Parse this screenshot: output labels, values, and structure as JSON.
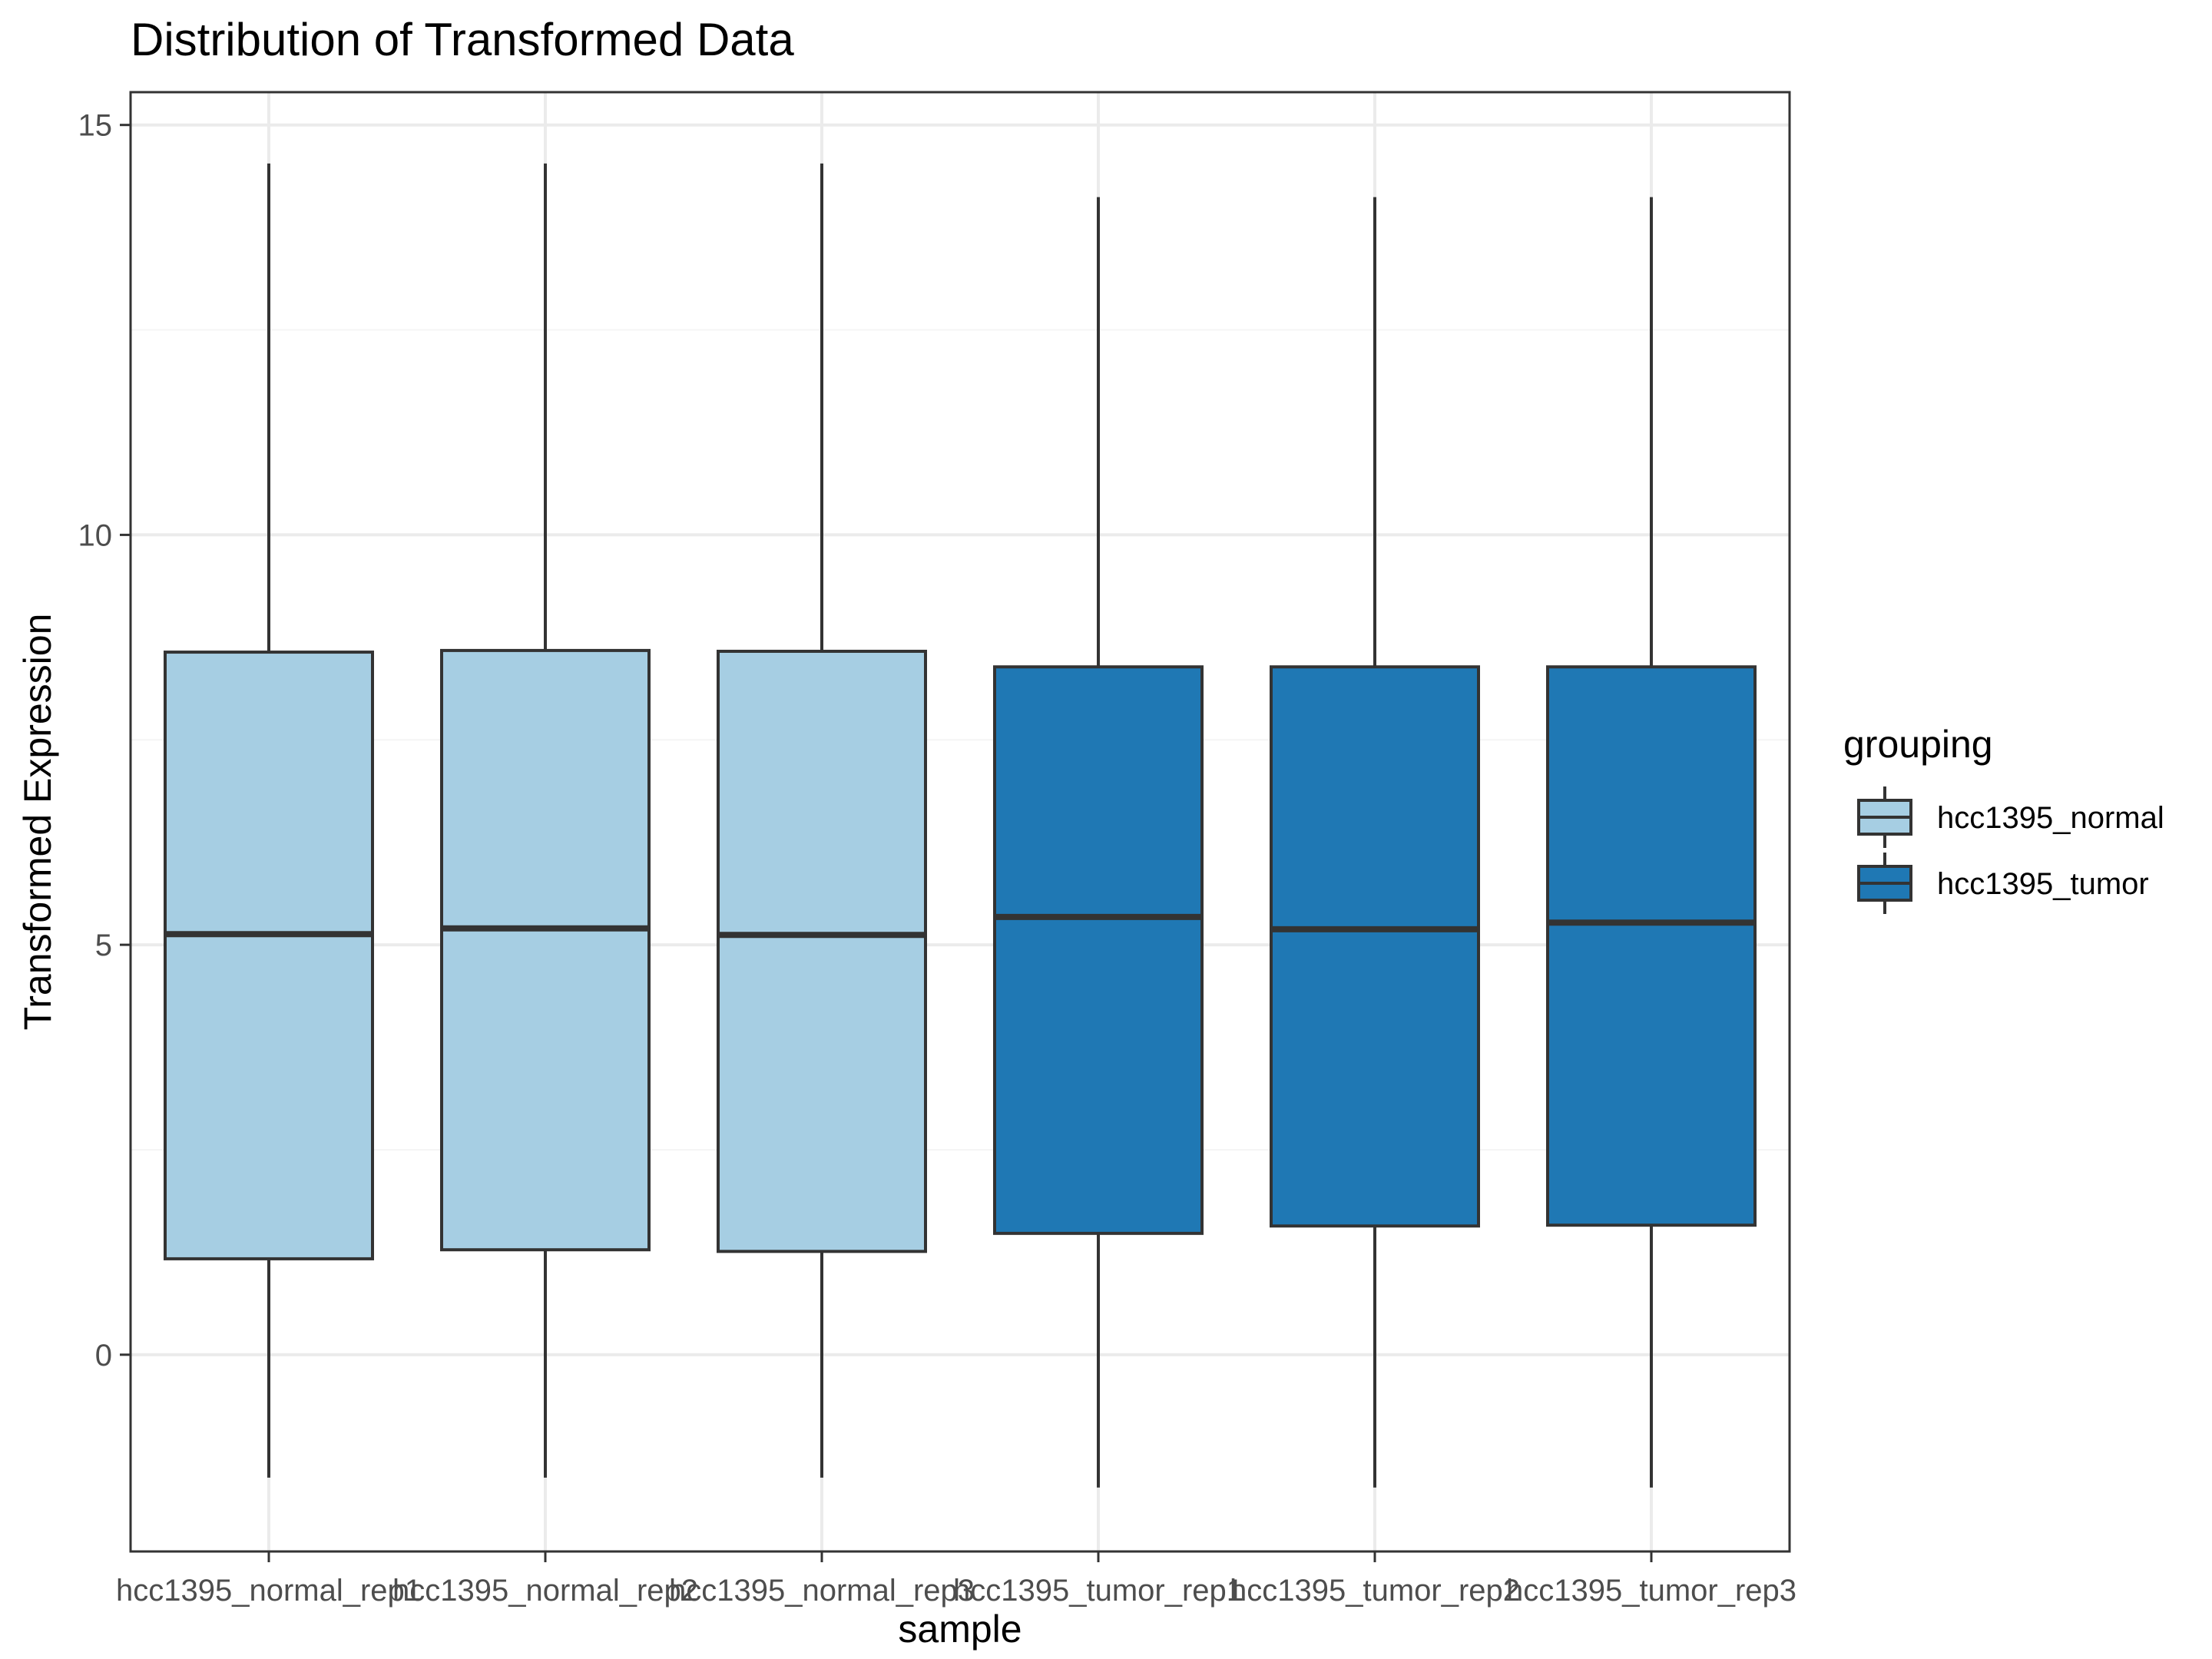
{
  "chart_data": {
    "type": "box",
    "title": "Distribution of Transformed Data",
    "xlabel": "sample",
    "ylabel": "Transformed Expression",
    "ylim": [
      -2.4,
      15.4
    ],
    "yticks": [
      0,
      5,
      10,
      15
    ],
    "ytick_labels": [
      "0",
      "5",
      "10",
      "15"
    ],
    "grid": true,
    "legend": {
      "title": "grouping",
      "placement": "right",
      "items": [
        {
          "label": "hcc1395_normal",
          "color": "#a6cee3"
        },
        {
          "label": "hcc1395_tumor",
          "color": "#1f78b4"
        }
      ]
    },
    "categories": [
      "hcc1395_normal_rep1",
      "hcc1395_normal_rep2",
      "hcc1395_normal_rep3",
      "hcc1395_tumor_rep1",
      "hcc1395_tumor_rep2",
      "hcc1395_tumor_rep3"
    ],
    "boxes": [
      {
        "sample": "hcc1395_normal_rep1",
        "group": "hcc1395_normal",
        "lower_whisker": -1.5,
        "q1": 1.17,
        "median": 5.13,
        "q3": 8.57,
        "upper_whisker": 14.53
      },
      {
        "sample": "hcc1395_normal_rep2",
        "group": "hcc1395_normal",
        "lower_whisker": -1.5,
        "q1": 1.28,
        "median": 5.2,
        "q3": 8.59,
        "upper_whisker": 14.53
      },
      {
        "sample": "hcc1395_normal_rep3",
        "group": "hcc1395_normal",
        "lower_whisker": -1.5,
        "q1": 1.26,
        "median": 5.12,
        "q3": 8.58,
        "upper_whisker": 14.53
      },
      {
        "sample": "hcc1395_tumor_rep1",
        "group": "hcc1395_tumor",
        "lower_whisker": -1.62,
        "q1": 1.48,
        "median": 5.34,
        "q3": 8.39,
        "upper_whisker": 14.12
      },
      {
        "sample": "hcc1395_tumor_rep2",
        "group": "hcc1395_tumor",
        "lower_whisker": -1.62,
        "q1": 1.57,
        "median": 5.19,
        "q3": 8.39,
        "upper_whisker": 14.12
      },
      {
        "sample": "hcc1395_tumor_rep3",
        "group": "hcc1395_tumor",
        "lower_whisker": -1.62,
        "q1": 1.58,
        "median": 5.27,
        "q3": 8.39,
        "upper_whisker": 14.12
      }
    ]
  },
  "colors": {
    "panel_background": "#ffffff",
    "grid_major": "#ebebeb",
    "grid_minor": "#f5f5f5",
    "panel_border": "#333333",
    "box_outline": "#333333",
    "tick_text": "#4d4d4d"
  }
}
